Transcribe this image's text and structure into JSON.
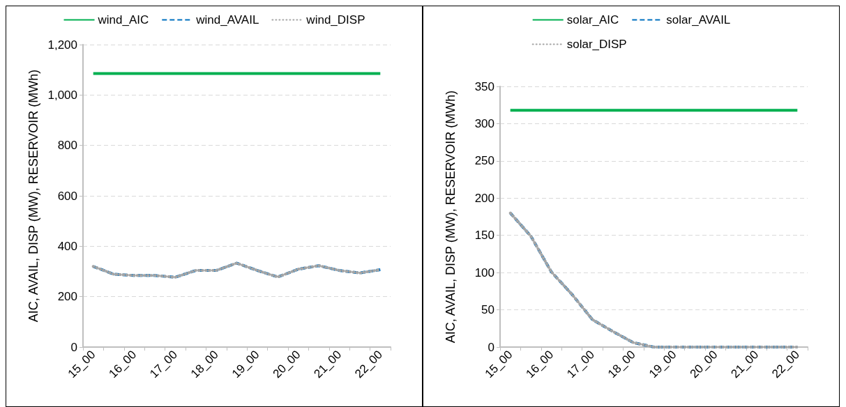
{
  "chart_data": [
    {
      "type": "line",
      "ylabel": "AIC, AVAIL, DISP (MW), RESERVOIR (MWh)",
      "categories": [
        "15_00",
        null,
        "16_00",
        null,
        "17_00",
        null,
        "18_00",
        null,
        "19_00",
        null,
        "20_00",
        null,
        "21_00",
        null,
        "22_00"
      ],
      "ylim": [
        0,
        1200
      ],
      "yticks": [
        0,
        200,
        400,
        600,
        800,
        {
          "value": 1000,
          "label": "1,000"
        },
        {
          "value": 1200,
          "label": "1,200"
        }
      ],
      "grid": "y",
      "legend": "top",
      "marker": "none",
      "series": [
        {
          "name": "wind_AIC",
          "color": "#00b050",
          "line_style": "solid",
          "values": [
            1085,
            1085,
            1085,
            1085,
            1085,
            1085,
            1085,
            1085,
            1085,
            1085,
            1085,
            1085,
            1085,
            1085,
            1085
          ]
        },
        {
          "name": "wind_AVAIL",
          "color": "#0070c0",
          "line_style": "dashed",
          "values": [
            320,
            289,
            284,
            284,
            277,
            304,
            304,
            333,
            304,
            278,
            309,
            323,
            304,
            294,
            307
          ]
        },
        {
          "name": "wind_DISP",
          "color": "#a5a5a5",
          "line_style": "dotted",
          "values": [
            320,
            289,
            284,
            284,
            277,
            304,
            304,
            333,
            304,
            278,
            309,
            323,
            304,
            294,
            307
          ]
        }
      ]
    },
    {
      "type": "line",
      "ylabel": "AIC, AVAIL, DISP (MW), RESERVOIR (MWh)",
      "categories": [
        "15_00",
        null,
        "16_00",
        null,
        "17_00",
        null,
        "18_00",
        null,
        "19_00",
        null,
        "20_00",
        null,
        "21_00",
        null,
        "22_00"
      ],
      "ylim": [
        0,
        350
      ],
      "yticks": [
        0,
        50,
        100,
        150,
        200,
        250,
        300,
        350
      ],
      "grid": "y",
      "legend": "top",
      "marker": "none",
      "series": [
        {
          "name": "solar_AIC",
          "color": "#00b050",
          "line_style": "solid",
          "values": [
            318,
            318,
            318,
            318,
            318,
            318,
            318,
            318,
            318,
            318,
            318,
            318,
            318,
            318,
            318
          ]
        },
        {
          "name": "solar_AVAIL",
          "color": "#0070c0",
          "line_style": "dashed",
          "values": [
            180,
            149,
            101,
            71,
            37,
            21,
            6,
            0,
            0,
            0,
            0,
            0,
            0,
            0,
            0
          ]
        },
        {
          "name": "solar_DISP",
          "color": "#a5a5a5",
          "line_style": "dotted",
          "values": [
            180,
            149,
            101,
            71,
            37,
            21,
            6,
            0,
            0,
            0,
            0,
            0,
            0,
            0,
            0
          ]
        }
      ]
    }
  ]
}
